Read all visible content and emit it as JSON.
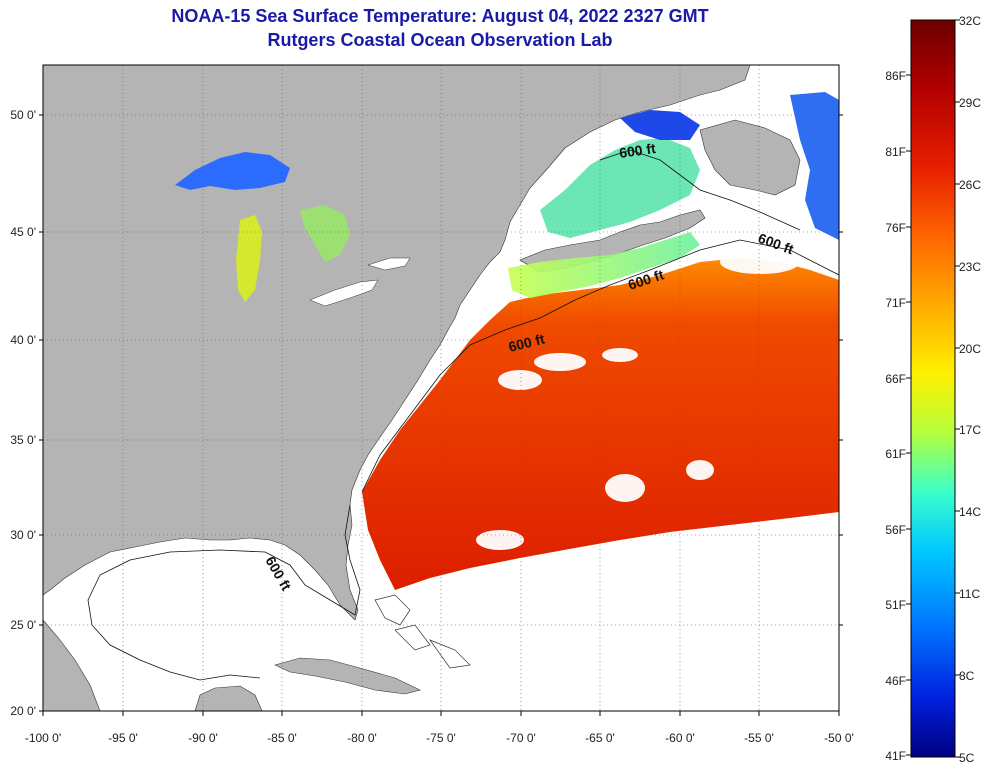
{
  "title": {
    "line1": "NOAA-15 Sea Surface Temperature:  August 04, 2022 2327 GMT",
    "line2": "Rutgers Coastal Ocean Observation Lab"
  },
  "map": {
    "lon_range": [
      -100,
      -50
    ],
    "lat_range": [
      20,
      52.5
    ],
    "lon_ticks": [
      "-100 0'",
      "-95 0'",
      "-90 0'",
      "-85 0'",
      "-80 0'",
      "-75 0'",
      "-70 0'",
      "-65 0'",
      "-60 0'",
      "-55 0'",
      "-50 0'"
    ],
    "lat_ticks": [
      "50 0'",
      "45 0'",
      "40 0'",
      "35 0'",
      "30 0'",
      "25 0'",
      "20 0'"
    ],
    "isobath_labels": [
      "600 ft",
      "600 ft",
      "600 ft",
      "600 ft",
      "600 ft"
    ],
    "colors": {
      "land": "#b4b4b4",
      "ocean_nodata": "#ffffff",
      "frame": "#000000"
    }
  },
  "colorbar": {
    "celsius_labels": [
      "32C",
      "29C",
      "26C",
      "23C",
      "20C",
      "17C",
      "14C",
      "11C",
      "8C",
      "5C"
    ],
    "fahrenheit_labels": [
      "86F",
      "81F",
      "76F",
      "71F",
      "66F",
      "61F",
      "56F",
      "51F",
      "46F",
      "41F"
    ],
    "range_c": [
      5,
      32
    ],
    "gradient": [
      "#6b0000",
      "#b00000",
      "#e81e00",
      "#ff6a00",
      "#ffb400",
      "#fff000",
      "#b4ff3c",
      "#3cffc8",
      "#00c8ff",
      "#0078ff",
      "#0020e0",
      "#000080"
    ]
  }
}
